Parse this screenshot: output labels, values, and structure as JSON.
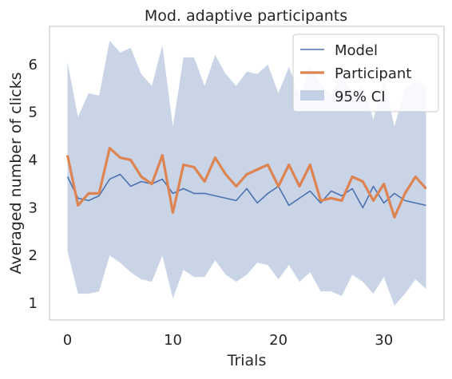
{
  "chart_data": {
    "type": "line",
    "title": "Mod. adaptive participants",
    "xlabel": "Trials",
    "ylabel": "Averaged number of clicks",
    "xlim": [
      -1.7,
      35.7
    ],
    "ylim": [
      0.65,
      6.8
    ],
    "grid": false,
    "legend_position": "top-right",
    "x_ticks": [
      0,
      10,
      20,
      30
    ],
    "y_ticks": [
      1,
      2,
      3,
      4,
      5,
      6
    ],
    "x": [
      0,
      1,
      2,
      3,
      4,
      5,
      6,
      7,
      8,
      9,
      10,
      11,
      12,
      13,
      14,
      15,
      16,
      17,
      18,
      19,
      20,
      21,
      22,
      23,
      24,
      25,
      26,
      27,
      28,
      29,
      30,
      31,
      32,
      33,
      34
    ],
    "series": [
      {
        "name": "Model",
        "color": "#4c72b0",
        "values": [
          3.65,
          3.2,
          3.15,
          3.25,
          3.6,
          3.7,
          3.45,
          3.55,
          3.5,
          3.6,
          3.3,
          3.4,
          3.3,
          3.3,
          3.25,
          3.2,
          3.15,
          3.4,
          3.1,
          3.3,
          3.45,
          3.05,
          3.2,
          3.35,
          3.1,
          3.35,
          3.25,
          3.4,
          3.0,
          3.45,
          3.1,
          3.3,
          3.15,
          3.1,
          3.05
        ]
      },
      {
        "name": "Participant",
        "color": "#dd8452",
        "values": [
          4.1,
          3.05,
          3.3,
          3.3,
          4.25,
          4.05,
          4.0,
          3.65,
          3.5,
          4.1,
          2.9,
          3.9,
          3.85,
          3.55,
          4.05,
          3.7,
          3.45,
          3.7,
          3.8,
          3.9,
          3.45,
          3.9,
          3.45,
          3.9,
          3.15,
          3.2,
          3.15,
          3.65,
          3.55,
          3.15,
          3.5,
          2.8,
          3.3,
          3.65,
          3.4
        ]
      }
    ],
    "ci": {
      "name": "95% CI",
      "color": "#4c72b0",
      "upper": [
        6.05,
        4.9,
        5.4,
        5.35,
        6.5,
        6.25,
        6.35,
        5.8,
        5.55,
        6.4,
        4.7,
        6.15,
        6.15,
        5.55,
        6.2,
        5.8,
        5.55,
        5.85,
        5.8,
        6.0,
        5.4,
        5.95,
        5.35,
        5.95,
        5.6,
        5.35,
        5.8,
        5.4,
        5.55,
        4.85,
        5.7,
        4.7,
        5.5,
        5.65,
        5.55
      ],
      "lower": [
        2.1,
        1.2,
        1.2,
        1.25,
        2.0,
        1.85,
        1.65,
        1.5,
        1.45,
        2.0,
        1.1,
        1.7,
        1.55,
        1.55,
        1.9,
        1.6,
        1.45,
        1.6,
        1.85,
        1.8,
        1.5,
        1.8,
        1.45,
        1.65,
        1.25,
        1.25,
        1.15,
        1.6,
        1.45,
        1.2,
        1.55,
        0.95,
        1.2,
        1.5,
        1.3
      ]
    }
  }
}
